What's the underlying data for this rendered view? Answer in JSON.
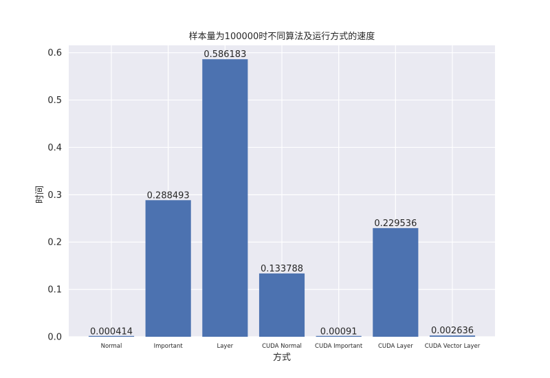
{
  "chart_data": {
    "type": "bar",
    "title": "样本量为100000时不同算法及运行方式的速度",
    "xlabel": "方式",
    "ylabel": "时间",
    "categories": [
      "Normal",
      "Important",
      "Layer",
      "CUDA Normal",
      "CUDA Important",
      "CUDA Layer",
      "CUDA Vector Layer"
    ],
    "values": [
      0.000414,
      0.288493,
      0.586183,
      0.133788,
      0.00091,
      0.229536,
      0.002636
    ],
    "data_labels": [
      "0.000414",
      "0.288493",
      "0.586183",
      "0.133788",
      "0.00091",
      "0.229536",
      "0.002636"
    ],
    "yticks": [
      "0.0",
      "0.1",
      "0.2",
      "0.3",
      "0.4",
      "0.5",
      "0.6"
    ],
    "ylim": [
      0,
      0.6155
    ],
    "grid": true,
    "colors": {
      "bar": "#4c72b0",
      "plot_bg": "#eaeaf2",
      "grid": "#ffffff"
    }
  }
}
